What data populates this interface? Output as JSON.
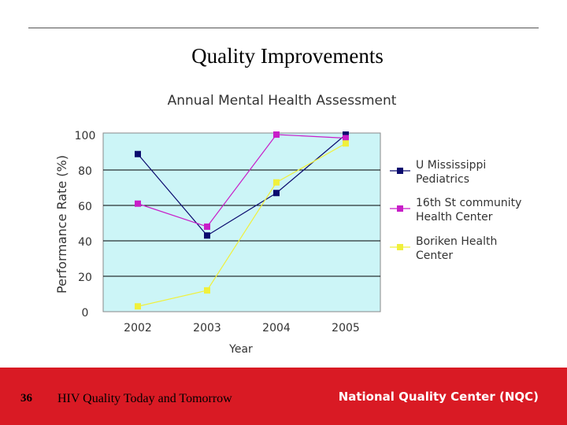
{
  "slide": {
    "title": "Quality Improvements",
    "number": "36",
    "footer_text": "HIV Quality Today and Tomorrow",
    "brand": "National Quality Center (NQC)"
  },
  "colors": {
    "footer_bg": "#d91a24",
    "plot_bg": "#ccf5f7",
    "series_navy": "#0a0a6e",
    "series_magenta": "#c81ec8",
    "series_yellow": "#f0f03c"
  },
  "chart_data": {
    "type": "line",
    "title": "Annual Mental Health Assessment",
    "xlabel": "Year",
    "ylabel": "Performance Rate (%)",
    "categories": [
      "2002",
      "2003",
      "2004",
      "2005"
    ],
    "ylim": [
      0,
      100
    ],
    "yticks": [
      "0",
      "20",
      "40",
      "60",
      "80",
      "100"
    ],
    "grid": true,
    "legend_position": "right",
    "series": [
      {
        "name": "U Mississippi Pediatrics",
        "legend_lines": [
          "U Mississippi",
          "Pediatrics"
        ],
        "color": "#0a0a6e",
        "values": [
          89,
          43,
          67,
          100
        ]
      },
      {
        "name": "16th St community Health Center",
        "legend_lines": [
          "16th St community",
          "Health Center"
        ],
        "color": "#c81ec8",
        "values": [
          61,
          48,
          100,
          98
        ]
      },
      {
        "name": "Boriken Health Center",
        "legend_lines": [
          "Boriken Health",
          "Center"
        ],
        "color": "#f0f03c",
        "values": [
          3,
          12,
          73,
          95
        ]
      }
    ]
  }
}
